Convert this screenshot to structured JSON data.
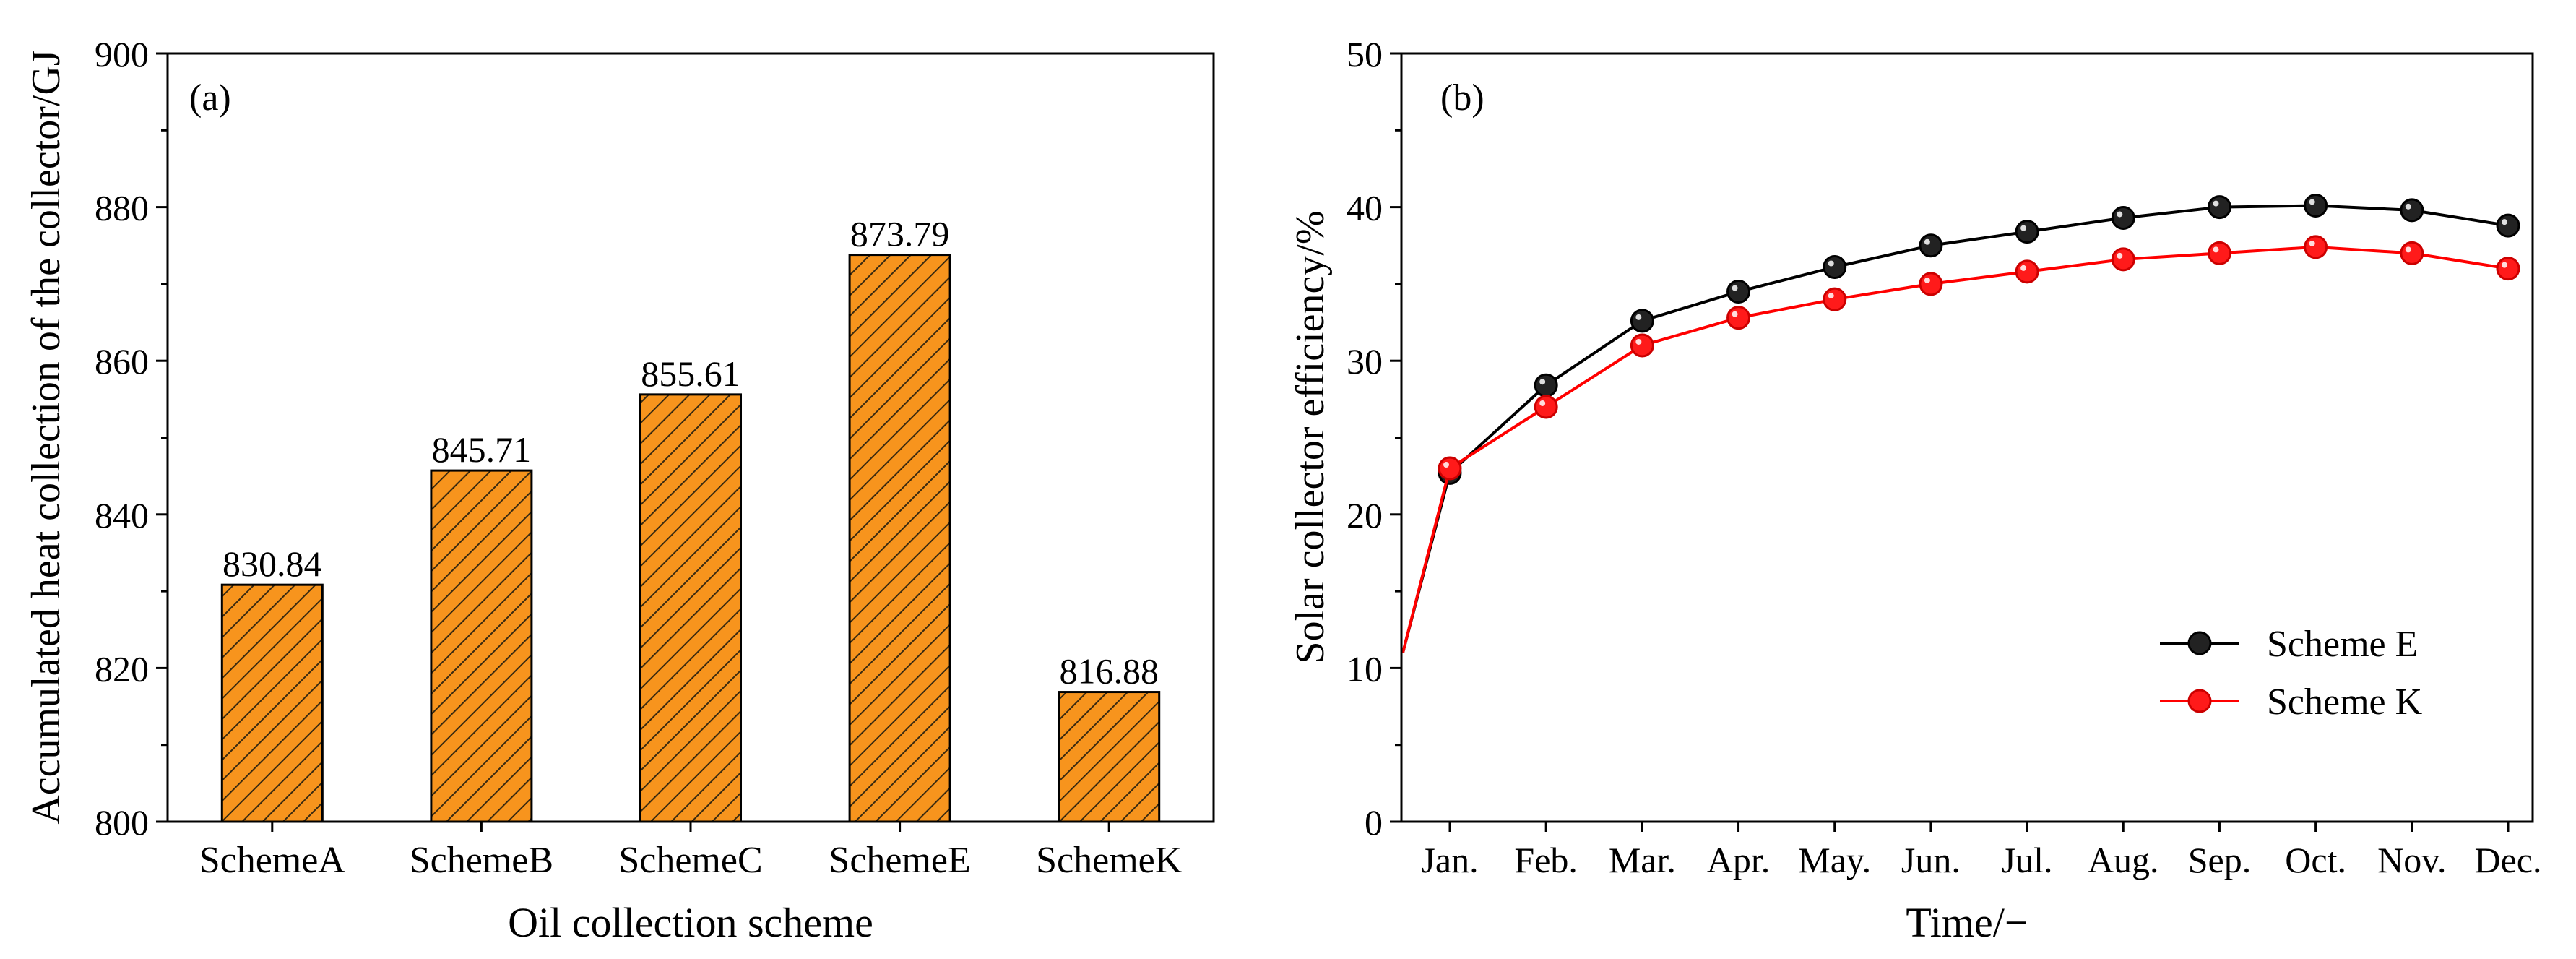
{
  "chart_data": [
    {
      "type": "bar",
      "panel_label": "(a)",
      "title": "",
      "xlabel": "Oil collection scheme",
      "ylabel": "Accumulated heat collection of the collector/GJ",
      "categories": [
        "SchemeA",
        "SchemeB",
        "SchemeC",
        "SchemeE",
        "SchemeK"
      ],
      "values": [
        830.84,
        845.71,
        855.61,
        873.79,
        816.88
      ],
      "value_labels": [
        "830.84",
        "845.71",
        "855.61",
        "873.79",
        "816.88"
      ],
      "ylim": [
        800,
        900
      ],
      "yticks": [
        800,
        820,
        840,
        860,
        880,
        900
      ],
      "ytick_labels": [
        "800",
        "820",
        "840",
        "860",
        "880",
        "900"
      ],
      "bar_color": "#F7941D",
      "hatch_color": "#3a2a10"
    },
    {
      "type": "line",
      "panel_label": "(b)",
      "title": "",
      "xlabel": "Time/−",
      "ylabel": "Solar collector efficiency/%",
      "categories": [
        "Jan.",
        "Feb.",
        "Mar.",
        "Apr.",
        "May.",
        "Jun.",
        "Jul.",
        "Aug.",
        "Sep.",
        "Oct.",
        "Nov.",
        "Dec."
      ],
      "ylim": [
        0,
        50
      ],
      "yticks": [
        0,
        10,
        20,
        30,
        40,
        50
      ],
      "ytick_labels": [
        "0",
        "10",
        "20",
        "30",
        "40",
        "50"
      ],
      "line_start": {
        "x": 0,
        "y": 11.0
      },
      "legend_position": "lower-right",
      "series": [
        {
          "name": "Scheme E",
          "color": "#000000",
          "marker_color": "#222222",
          "values": [
            22.7,
            28.4,
            32.6,
            34.5,
            36.1,
            37.5,
            38.4,
            39.3,
            40.0,
            40.1,
            39.8,
            38.8
          ]
        },
        {
          "name": "Scheme K",
          "color": "#FF0000",
          "marker_color": "#FF1a1a",
          "values": [
            23.0,
            27.0,
            31.0,
            32.8,
            34.0,
            35.0,
            35.8,
            36.6,
            37.0,
            37.4,
            37.0,
            36.0
          ]
        }
      ]
    }
  ]
}
